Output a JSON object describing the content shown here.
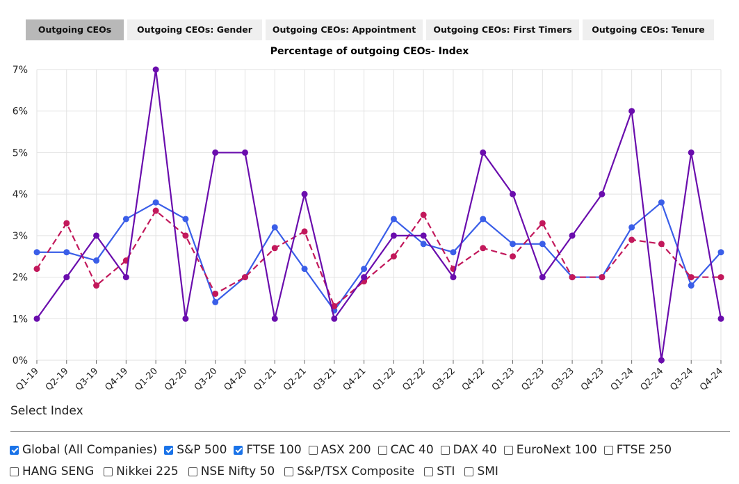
{
  "tabs": [
    {
      "label": "Outgoing CEOs",
      "active": true
    },
    {
      "label": "Outgoing CEOs: Gender",
      "active": false
    },
    {
      "label": "Outgoing CEOs: Appointment",
      "active": false
    },
    {
      "label": "Outgoing CEOs: First Timers",
      "active": false
    },
    {
      "label": "Outgoing CEOs: Tenure",
      "active": false
    }
  ],
  "chart_data": {
    "type": "line",
    "title": "Percentage of outgoing CEOs- Index",
    "xlabel": "",
    "ylabel": "",
    "ylim": [
      0,
      7
    ],
    "yticks": [
      "0%",
      "1%",
      "2%",
      "3%",
      "4%",
      "5%",
      "6%",
      "7%"
    ],
    "grid": true,
    "categories": [
      "Q1-19",
      "Q2-19",
      "Q3-19",
      "Q4-19",
      "Q1-20",
      "Q2-20",
      "Q3-20",
      "Q4-20",
      "Q1-21",
      "Q2-21",
      "Q3-21",
      "Q4-21",
      "Q1-22",
      "Q2-22",
      "Q3-22",
      "Q4-22",
      "Q1-23",
      "Q2-23",
      "Q3-23",
      "Q4-23",
      "Q1-24",
      "Q2-24",
      "Q3-24",
      "Q4-24"
    ],
    "series": [
      {
        "values": [
          2.6,
          2.6,
          2.4,
          3.4,
          3.8,
          3.4,
          1.4,
          2.0,
          3.2,
          2.2,
          1.2,
          2.2,
          3.4,
          2.8,
          2.6,
          3.4,
          2.8,
          2.8,
          2.0,
          2.0,
          3.2,
          3.8,
          1.8,
          2.6
        ],
        "color": "#3a5ee8",
        "dashed": false
      },
      {
        "values": [
          2.2,
          3.3,
          1.8,
          2.4,
          3.6,
          3.0,
          1.6,
          2.0,
          2.7,
          3.1,
          1.3,
          1.9,
          2.5,
          3.5,
          2.2,
          2.7,
          2.5,
          3.3,
          2.0,
          2.0,
          2.9,
          2.8,
          2.0,
          2.0
        ],
        "color": "#c2185b",
        "dashed": true
      },
      {
        "values": [
          1,
          2,
          3,
          2,
          7,
          1,
          5,
          5,
          1,
          4,
          1,
          2,
          3,
          3,
          2,
          5,
          4,
          2,
          3,
          4,
          6,
          0,
          5,
          1
        ],
        "color": "#6a0dad",
        "dashed": false
      }
    ]
  },
  "select_index": {
    "label": "Select Index",
    "options_row1": [
      {
        "label": "Global (All Companies)",
        "checked": true
      },
      {
        "label": "S&P 500",
        "checked": true
      },
      {
        "label": "FTSE 100",
        "checked": true
      },
      {
        "label": "ASX 200",
        "checked": false
      },
      {
        "label": "CAC 40",
        "checked": false
      },
      {
        "label": "DAX 40",
        "checked": false
      },
      {
        "label": "EuroNext 100",
        "checked": false
      },
      {
        "label": "FTSE 250",
        "checked": false
      }
    ],
    "options_row2": [
      {
        "label": "HANG SENG",
        "checked": false
      },
      {
        "label": "Nikkei 225",
        "checked": false
      },
      {
        "label": "NSE Nifty 50",
        "checked": false
      },
      {
        "label": "S&P/TSX Composite",
        "checked": false
      },
      {
        "label": "STI",
        "checked": false
      },
      {
        "label": "SMI",
        "checked": false
      }
    ]
  }
}
